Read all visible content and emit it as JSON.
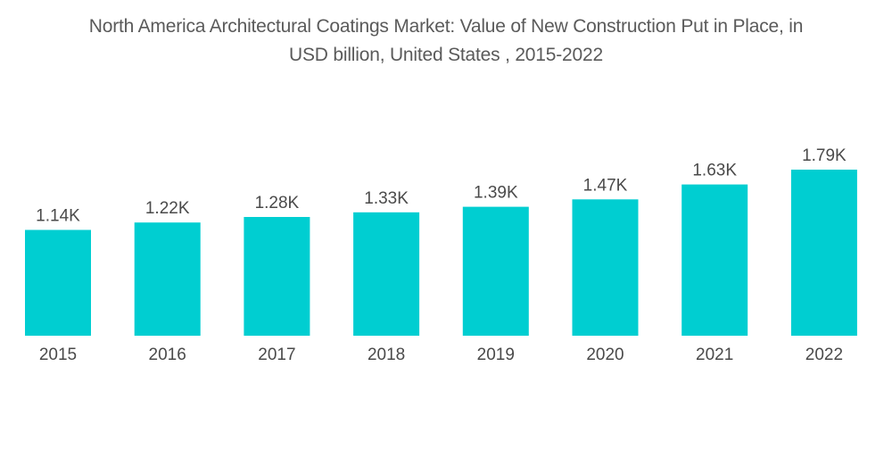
{
  "chart_data": {
    "type": "bar",
    "title": "North America Architectural Coatings Market: Value of New Construction Put in Place, in USD billion, United States , 2015-2022",
    "title_lines": [
      "North America Architectural Coatings Market: Value of New Construction Put in Place, in",
      "USD billion, United States , 2015-2022"
    ],
    "categories": [
      "2015",
      "2016",
      "2017",
      "2018",
      "2019",
      "2020",
      "2021",
      "2022"
    ],
    "values": [
      1140,
      1220,
      1280,
      1330,
      1390,
      1470,
      1630,
      1790
    ],
    "data_labels": [
      "1.14K",
      "1.22K",
      "1.28K",
      "1.33K",
      "1.39K",
      "1.47K",
      "1.63K",
      "1.79K"
    ],
    "xlabel": "",
    "ylabel": "",
    "ylim": [
      0,
      1790
    ],
    "grid": false,
    "legend": "none",
    "bar_color": "#00CED1"
  }
}
